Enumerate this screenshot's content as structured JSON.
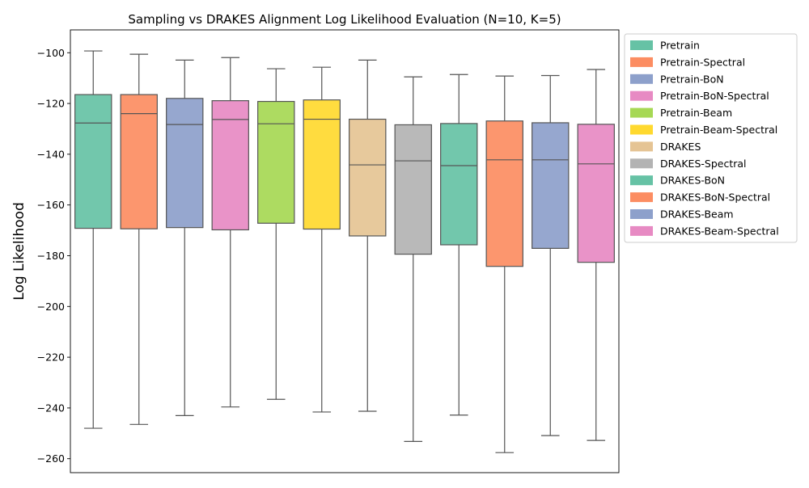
{
  "chart_data": {
    "type": "box",
    "title": "Sampling vs DRAKES Alignment Log Likelihood Evaluation (N=10, K=5)",
    "xlabel": "",
    "ylabel": "Log Likelihood",
    "ylim": [
      -265.5,
      -91
    ],
    "yticks": [
      -100,
      -120,
      -140,
      -160,
      -180,
      -200,
      -220,
      -240,
      -260
    ],
    "ytick_labels": [
      "−100",
      "−120",
      "−140",
      "−160",
      "−180",
      "−200",
      "−220",
      "−240",
      "−260"
    ],
    "grid": false,
    "legend_position": "outside-right",
    "series": [
      {
        "name": "Pretrain",
        "color": "#66c2a5",
        "whisker_low": -248,
        "q1": -169.2,
        "median": -127.7,
        "q3": -116.5,
        "whisker_high": -99.3
      },
      {
        "name": "Pretrain-Spectral",
        "color": "#fc8d62",
        "whisker_low": -246.5,
        "q1": -169.4,
        "median": -124,
        "q3": -116.5,
        "whisker_high": -100.6
      },
      {
        "name": "Pretrain-BoN",
        "color": "#8da0cb",
        "whisker_low": -243,
        "q1": -168.9,
        "median": -128.3,
        "q3": -118,
        "whisker_high": -102.9
      },
      {
        "name": "Pretrain-BoN-Spectral",
        "color": "#e78ac3",
        "whisker_low": -239.6,
        "q1": -169.8,
        "median": -126.3,
        "q3": -118.9,
        "whisker_high": -101.9
      },
      {
        "name": "Pretrain-Beam",
        "color": "#a6d854",
        "whisker_low": -236.6,
        "q1": -167.2,
        "median": -128,
        "q3": -119.2,
        "whisker_high": -106.3
      },
      {
        "name": "Pretrain-Beam-Spectral",
        "color": "#ffd92f",
        "whisker_low": -241.6,
        "q1": -169.5,
        "median": -126.2,
        "q3": -118.6,
        "whisker_high": -105.7
      },
      {
        "name": "DRAKES",
        "color": "#e5c494",
        "whisker_low": -241.3,
        "q1": -172.2,
        "median": -144.2,
        "q3": -126.2,
        "whisker_high": -102.9
      },
      {
        "name": "DRAKES-Spectral",
        "color": "#b3b3b3",
        "whisker_low": -253.2,
        "q1": -179.4,
        "median": -142.6,
        "q3": -128.4,
        "whisker_high": -109.5
      },
      {
        "name": "DRAKES-BoN",
        "color": "#66c2a5",
        "whisker_low": -242.8,
        "q1": -175.7,
        "median": -144.5,
        "q3": -127.9,
        "whisker_high": -108.6
      },
      {
        "name": "DRAKES-BoN-Spectral",
        "color": "#fc8d62",
        "whisker_low": -257.6,
        "q1": -184.2,
        "median": -142.2,
        "q3": -126.9,
        "whisker_high": -109.2
      },
      {
        "name": "DRAKES-Beam",
        "color": "#8da0cb",
        "whisker_low": -250.9,
        "q1": -177.1,
        "median": -142.2,
        "q3": -127.6,
        "whisker_high": -109
      },
      {
        "name": "DRAKES-Beam-Spectral",
        "color": "#e78ac3",
        "whisker_low": -252.8,
        "q1": -182.6,
        "median": -143.8,
        "q3": -128.2,
        "whisker_high": -106.6
      }
    ]
  }
}
